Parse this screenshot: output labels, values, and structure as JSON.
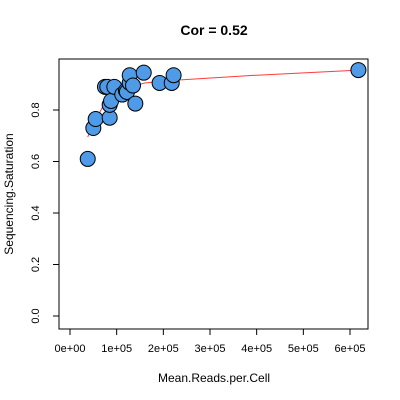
{
  "chart_data": {
    "type": "scatter",
    "title": "Cor = 0.52",
    "xlabel": "Mean.Reads.per.Cell",
    "ylabel": "Sequencing.Saturation",
    "xlim": [
      0,
      620000
    ],
    "ylim": [
      0,
      0.95
    ],
    "x_ticks": [
      0,
      100000,
      200000,
      300000,
      400000,
      500000,
      600000
    ],
    "x_tick_labels": [
      "0e+00",
      "1e+05",
      "2e+05",
      "3e+05",
      "4e+05",
      "5e+05",
      "6e+05"
    ],
    "y_ticks": [
      0.0,
      0.2,
      0.4,
      0.6,
      0.8
    ],
    "y_tick_labels": [
      "0.0",
      "0.2",
      "0.4",
      "0.6",
      "0.8"
    ],
    "point_color": "#4f9be8",
    "point_edge_color": "#000000",
    "fit_line_color": "#ff3b3b",
    "points": [
      {
        "x": 38000,
        "y": 0.61
      },
      {
        "x": 50000,
        "y": 0.73
      },
      {
        "x": 55000,
        "y": 0.765
      },
      {
        "x": 75000,
        "y": 0.89
      },
      {
        "x": 80000,
        "y": 0.89
      },
      {
        "x": 85000,
        "y": 0.77
      },
      {
        "x": 85000,
        "y": 0.82
      },
      {
        "x": 88000,
        "y": 0.835
      },
      {
        "x": 95000,
        "y": 0.89
      },
      {
        "x": 112000,
        "y": 0.86
      },
      {
        "x": 120000,
        "y": 0.875
      },
      {
        "x": 122000,
        "y": 0.87
      },
      {
        "x": 128000,
        "y": 0.905
      },
      {
        "x": 128000,
        "y": 0.935
      },
      {
        "x": 135000,
        "y": 0.895
      },
      {
        "x": 140000,
        "y": 0.825
      },
      {
        "x": 158000,
        "y": 0.945
      },
      {
        "x": 192000,
        "y": 0.905
      },
      {
        "x": 218000,
        "y": 0.905
      },
      {
        "x": 222000,
        "y": 0.935
      },
      {
        "x": 618000,
        "y": 0.955
      }
    ],
    "fit_line": [
      {
        "x": 38000,
        "y": 0.695
      },
      {
        "x": 50000,
        "y": 0.745
      },
      {
        "x": 70000,
        "y": 0.812
      },
      {
        "x": 90000,
        "y": 0.855
      },
      {
        "x": 120000,
        "y": 0.886
      },
      {
        "x": 160000,
        "y": 0.905
      },
      {
        "x": 220000,
        "y": 0.915
      },
      {
        "x": 400000,
        "y": 0.935
      },
      {
        "x": 618000,
        "y": 0.955
      }
    ]
  }
}
